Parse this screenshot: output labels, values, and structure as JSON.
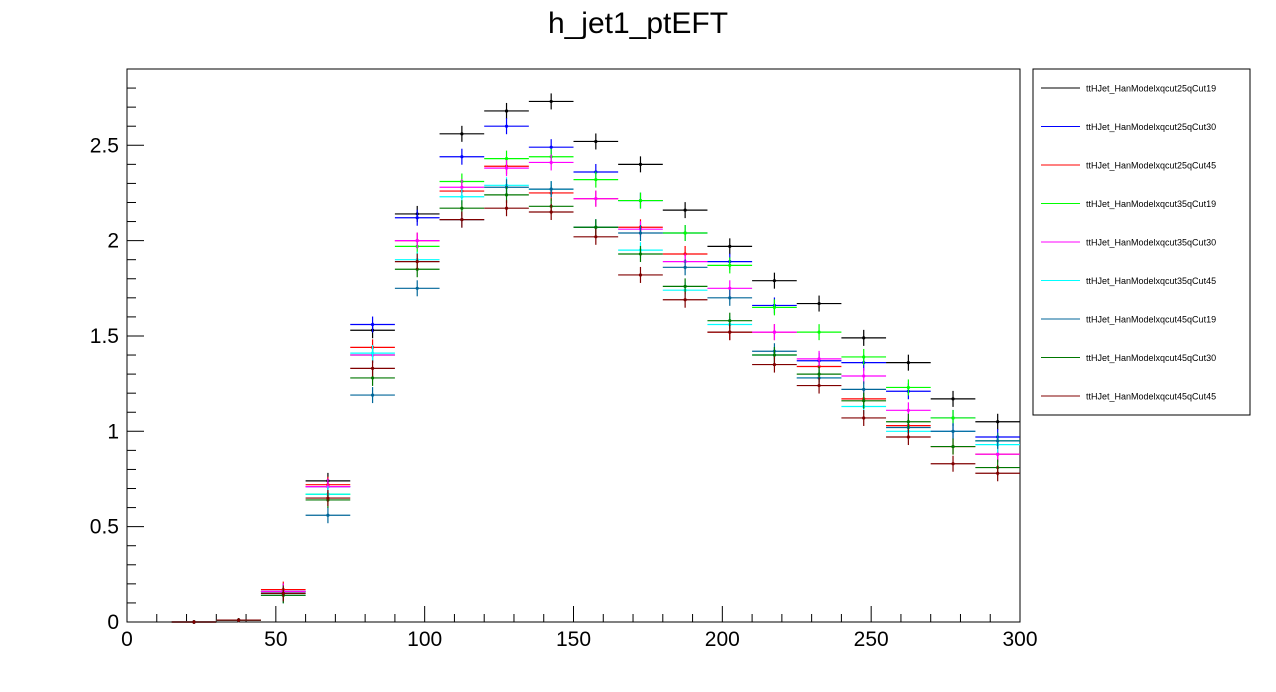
{
  "chart_data": {
    "type": "scatter",
    "title": "h_jet1_ptEFT",
    "xlabel": "",
    "ylabel": "",
    "xlim": [
      0,
      300
    ],
    "ylim": [
      0,
      2.9
    ],
    "grid": false,
    "legend_position": "right",
    "x_ticks": [
      "0",
      "50",
      "100",
      "150",
      "200",
      "250",
      "300"
    ],
    "y_ticks": [
      "0",
      "0.5",
      "1",
      "1.5",
      "2",
      "2.5"
    ],
    "x": [
      22.5,
      37.5,
      52.5,
      67.5,
      82.5,
      97.5,
      112.5,
      127.5,
      142.5,
      157.5,
      172.5,
      187.5,
      202.5,
      217.5,
      232.5,
      247.5,
      262.5,
      277.5,
      292.5
    ],
    "bin_half_width": 7.5,
    "series": [
      {
        "name": "ttHJet_HanModelxqcut25qCut19",
        "color": "#000000",
        "values": [
          0.0,
          0.01,
          0.16,
          0.74,
          1.53,
          2.14,
          2.56,
          2.68,
          2.73,
          2.52,
          2.4,
          2.16,
          1.97,
          1.79,
          1.67,
          1.49,
          1.36,
          1.17,
          1.05
        ]
      },
      {
        "name": "ttHJet_HanModelxqcut25qCut30",
        "color": "#0000ff",
        "values": [
          0.0,
          0.01,
          0.16,
          0.71,
          1.56,
          2.12,
          2.44,
          2.6,
          2.49,
          2.36,
          2.21,
          2.04,
          1.89,
          1.66,
          1.37,
          1.36,
          1.21,
          1.07,
          0.97
        ]
      },
      {
        "name": "ttHJet_HanModelxqcut25qCut45",
        "color": "#ff0000",
        "values": [
          0.0,
          0.01,
          0.17,
          0.72,
          1.44,
          2.0,
          2.26,
          2.39,
          2.25,
          2.22,
          2.07,
          1.93,
          1.52,
          1.52,
          1.34,
          1.17,
          1.03,
          0.92,
          0.88
        ]
      },
      {
        "name": "ttHJet_HanModelxqcut35qCut19",
        "color": "#00ff00",
        "values": [
          0.0,
          0.01,
          0.15,
          0.67,
          1.4,
          1.97,
          2.31,
          2.43,
          2.44,
          2.32,
          2.21,
          2.04,
          1.87,
          1.65,
          1.52,
          1.39,
          1.23,
          1.07,
          0.95
        ]
      },
      {
        "name": "ttHJet_HanModelxqcut35qCut30",
        "color": "#ff00ff",
        "values": [
          0.0,
          0.01,
          0.16,
          0.71,
          1.4,
          2.0,
          2.28,
          2.38,
          2.41,
          2.22,
          2.06,
          1.89,
          1.75,
          1.52,
          1.38,
          1.29,
          1.11,
          1.0,
          0.88
        ]
      },
      {
        "name": "ttHJet_HanModelxqcut35qCut45",
        "color": "#00ffff",
        "values": [
          0.0,
          0.01,
          0.15,
          0.67,
          1.41,
          1.9,
          2.23,
          2.29,
          2.27,
          2.07,
          1.95,
          1.74,
          1.56,
          1.4,
          1.28,
          1.13,
          1.0,
          1.0,
          0.93
        ]
      },
      {
        "name": "ttHJet_HanModelxqcut45qCut19",
        "color": "#006699",
        "values": [
          0.0,
          0.01,
          0.14,
          0.56,
          1.19,
          1.75,
          2.11,
          2.28,
          2.27,
          2.07,
          2.04,
          1.86,
          1.7,
          1.42,
          1.28,
          1.22,
          1.02,
          1.0,
          0.95
        ]
      },
      {
        "name": "ttHJet_HanModelxqcut45qCut30",
        "color": "#007700",
        "values": [
          0.0,
          0.01,
          0.14,
          0.64,
          1.28,
          1.85,
          2.17,
          2.24,
          2.18,
          2.07,
          1.93,
          1.76,
          1.58,
          1.4,
          1.3,
          1.16,
          1.05,
          0.92,
          0.81
        ]
      },
      {
        "name": "ttHJet_HanModelxqcut45qCut45",
        "color": "#800000",
        "values": [
          0.0,
          0.01,
          0.15,
          0.65,
          1.33,
          1.89,
          2.11,
          2.17,
          2.15,
          2.02,
          1.82,
          1.69,
          1.52,
          1.35,
          1.24,
          1.07,
          0.97,
          0.83,
          0.78
        ]
      }
    ]
  }
}
